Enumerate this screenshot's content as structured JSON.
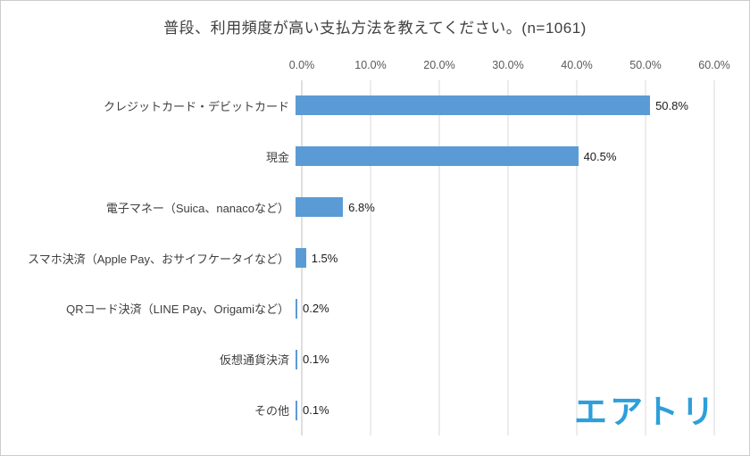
{
  "chart_data": {
    "type": "bar",
    "orientation": "horizontal",
    "title": "普段、利用頻度が高い支払方法を教えてください。(n=1061)",
    "categories": [
      "クレジットカード・デビットカード",
      "現金",
      "電子マネー（Suica、nanacoなど）",
      "スマホ決済（Apple Pay、おサイフケータイなど）",
      "QRコード決済（LINE Pay、Origamiなど）",
      "仮想通貨決済",
      "その他"
    ],
    "values": [
      50.8,
      40.5,
      6.8,
      1.5,
      0.2,
      0.1,
      0.1
    ],
    "value_labels": [
      "50.8%",
      "40.5%",
      "6.8%",
      "1.5%",
      "0.2%",
      "0.1%",
      "0.1%"
    ],
    "x_ticks": [
      "0.0%",
      "10.0%",
      "20.0%",
      "30.0%",
      "40.0%",
      "50.0%",
      "60.0%"
    ],
    "xlim": [
      0,
      60
    ],
    "xlabel": "",
    "ylabel": "",
    "legend": "none",
    "grid": "vertical",
    "bar_color": "#5b9bd5",
    "gridline_color": "#d9d9d9",
    "axis_line_color": "#bfbfbf"
  },
  "watermark": {
    "text": "エアトリ",
    "color": "#2d9fda"
  }
}
